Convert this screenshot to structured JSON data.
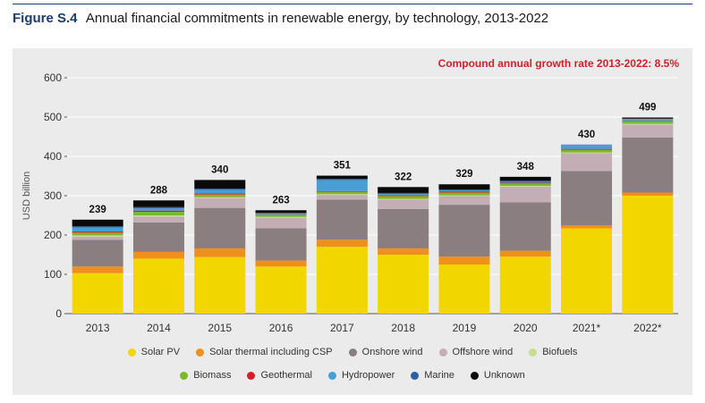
{
  "figure": {
    "label": "Figure S.4",
    "title": "Annual financial commitments in renewable energy, by technology, 2013-2022"
  },
  "annotation": "Compound annual growth rate 2013-2022: 8.5%",
  "colors": {
    "accent": "#1d3b6e",
    "annotation": "#d0202a",
    "panel": "#ebebeb"
  },
  "chart_data": {
    "type": "bar",
    "stacked": true,
    "ylabel": "USD billion",
    "xlabel": "",
    "ylim": [
      0,
      600
    ],
    "yticks": [
      0,
      100,
      200,
      300,
      400,
      500,
      600
    ],
    "grid": true,
    "legend_position": "bottom",
    "categories": [
      "2013",
      "2014",
      "2015",
      "2016",
      "2017",
      "2018",
      "2019",
      "2020",
      "2021*",
      "2022*"
    ],
    "totals": [
      239,
      288,
      340,
      263,
      351,
      322,
      329,
      348,
      430,
      499
    ],
    "series": [
      {
        "name": "Solar PV",
        "color": "#f2d600",
        "values": [
          103,
          140,
          144,
          120,
          170,
          150,
          125,
          145,
          217,
          300
        ]
      },
      {
        "name": "Solar thermal including CSP",
        "color": "#ef8f1c",
        "values": [
          17,
          17,
          22,
          15,
          18,
          16,
          20,
          15,
          8,
          8
        ]
      },
      {
        "name": "Onshore wind",
        "color": "#8a7e80",
        "values": [
          68,
          75,
          103,
          82,
          102,
          100,
          132,
          123,
          138,
          140
        ]
      },
      {
        "name": "Offshore wind",
        "color": "#c3aeb5",
        "values": [
          8,
          15,
          25,
          27,
          12,
          24,
          22,
          40,
          45,
          33
        ]
      },
      {
        "name": "Biofuels",
        "color": "#c7de8e",
        "values": [
          3,
          3,
          2,
          2,
          2,
          2,
          2,
          2,
          2,
          2
        ]
      },
      {
        "name": "Biomass",
        "color": "#7cb82f",
        "values": [
          7,
          9,
          7,
          5,
          6,
          7,
          7,
          6,
          7,
          7
        ]
      },
      {
        "name": "Geothermal",
        "color": "#d0202a",
        "values": [
          3,
          3,
          3,
          1,
          2,
          2,
          3,
          2,
          2,
          1
        ]
      },
      {
        "name": "Hydropower",
        "color": "#4a9ed6",
        "values": [
          10,
          6,
          9,
          3,
          28,
          3,
          2,
          2,
          10,
          4
        ]
      },
      {
        "name": "Marine",
        "color": "#2e5f9e",
        "values": [
          3,
          3,
          3,
          1,
          3,
          3,
          3,
          3,
          1,
          1
        ]
      },
      {
        "name": "Unknown",
        "color": "#0a0a0a",
        "values": [
          17,
          17,
          22,
          7,
          8,
          15,
          13,
          10,
          0,
          3
        ]
      }
    ]
  }
}
